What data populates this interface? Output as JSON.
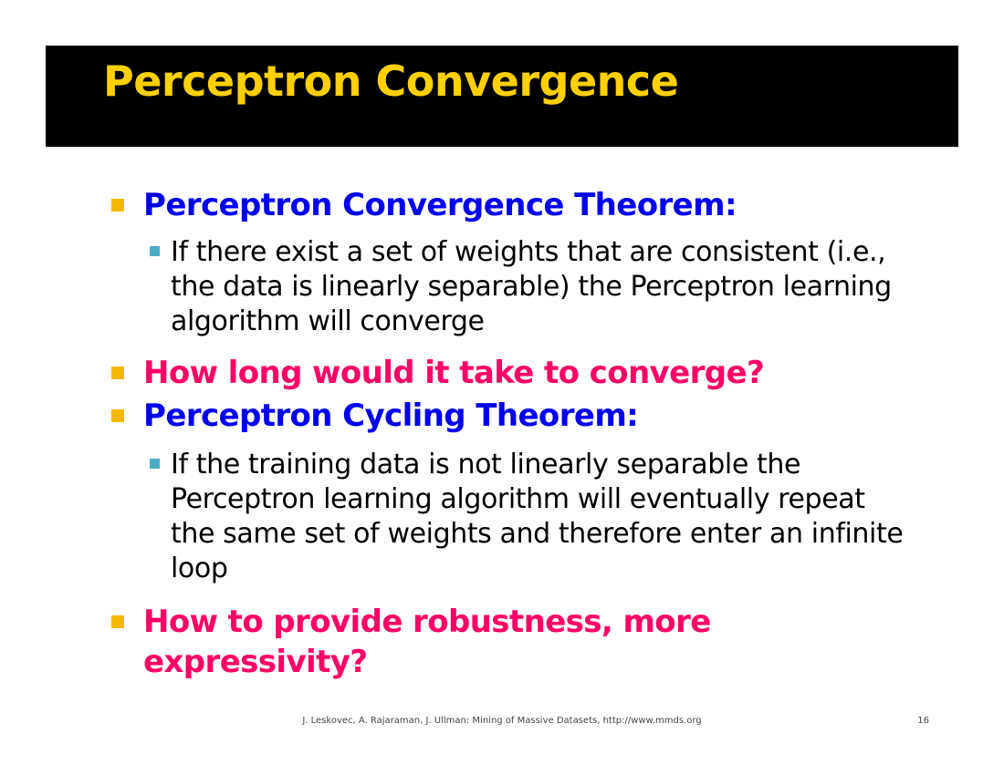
{
  "slide": {
    "title": "Perceptron Convergence",
    "colors": {
      "title_bar": "#000000",
      "title_text": "#ffd000",
      "heading_blue": "#0000ee",
      "heading_pink": "#ff0066",
      "level1_marker": "#f5b800",
      "level2_marker": "#4bacc6"
    },
    "bullets": [
      {
        "text": "Perceptron Convergence Theorem:",
        "sub": "If there exist a set of weights that are consistent (i.e., the data is linearly separable) the Perceptron learning algorithm will converge"
      },
      {
        "text": "How long would it take to converge?"
      },
      {
        "text": "Perceptron Cycling Theorem:",
        "sub": "If the training data is not linearly separable the Perceptron learning algorithm will eventually repeat the same set of weights and therefore enter an infinite loop"
      },
      {
        "text": "How to provide robustness, more expressivity?"
      }
    ]
  },
  "footer": {
    "citation": "J. Leskovec, A. Rajaraman, J. Ullman: Mining of Massive Datasets, http://www.mmds.org",
    "page_number": "16"
  }
}
